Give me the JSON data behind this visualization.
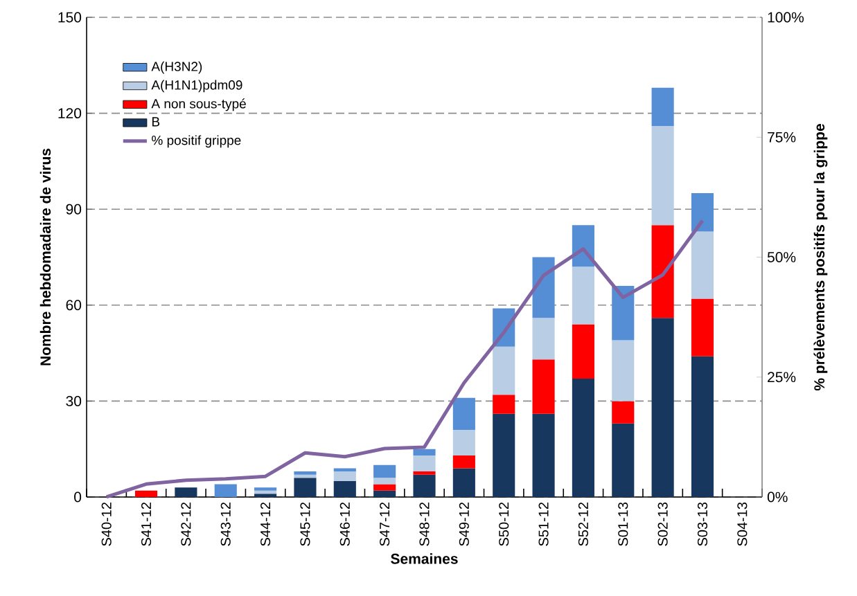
{
  "chart_data": {
    "type": "bar",
    "stacked": true,
    "categories": [
      "S40-12",
      "S41-12",
      "S42-12",
      "S43-12",
      "S44-12",
      "S45-12",
      "S46-12",
      "S47-12",
      "S48-12",
      "S49-12",
      "S50-12",
      "S51-12",
      "S52-12",
      "S01-13",
      "S02-13",
      "S03-13",
      "S04-13"
    ],
    "series": [
      {
        "name": "B",
        "color": "#17375e",
        "values": [
          null,
          null,
          3,
          null,
          1,
          6,
          5,
          2,
          7,
          9,
          26,
          26,
          37,
          23,
          56,
          44,
          null
        ]
      },
      {
        "name": "A non sous-typé",
        "color": "#ff0000",
        "values": [
          null,
          2,
          null,
          null,
          null,
          null,
          null,
          2,
          1,
          4,
          6,
          17,
          17,
          7,
          29,
          18,
          null
        ]
      },
      {
        "name": "A(H1N1)pdm09",
        "color": "#b9cde5",
        "values": [
          null,
          null,
          null,
          null,
          1,
          1,
          3,
          2,
          5,
          8,
          15,
          13,
          18,
          19,
          31,
          21,
          null
        ]
      },
      {
        "name": "A(H3N2)",
        "color": "#558ed5",
        "values": [
          null,
          null,
          null,
          4,
          1,
          1,
          1,
          4,
          2,
          10,
          12,
          19,
          13,
          17,
          12,
          12,
          null
        ]
      },
      {
        "name": "% positif grippe",
        "type": "line",
        "axis": "y2",
        "color": "#8064a2",
        "values": [
          0,
          2.7,
          3.5,
          3.8,
          4.3,
          9.2,
          8.4,
          10.1,
          10.4,
          23.8,
          34.3,
          46.2,
          51.7,
          41.6,
          46.3,
          57.6,
          null
        ]
      }
    ],
    "xlabel": "Semaines",
    "ylabel": "Nombre hebdomadaire de virus",
    "y2label": "% prélèvements positifs pour la grippe",
    "ylim": [
      0,
      150
    ],
    "yticks": [
      0,
      30,
      60,
      90,
      120,
      150
    ],
    "y2lim": [
      0,
      100
    ],
    "y2ticks": [
      {
        "value": 0,
        "label": "0%"
      },
      {
        "value": 25,
        "label": "25%"
      },
      {
        "value": 50,
        "label": "50%"
      },
      {
        "value": 75,
        "label": "75%"
      },
      {
        "value": 100,
        "label": "100%"
      }
    ],
    "grid": "y",
    "legend": "top left"
  }
}
